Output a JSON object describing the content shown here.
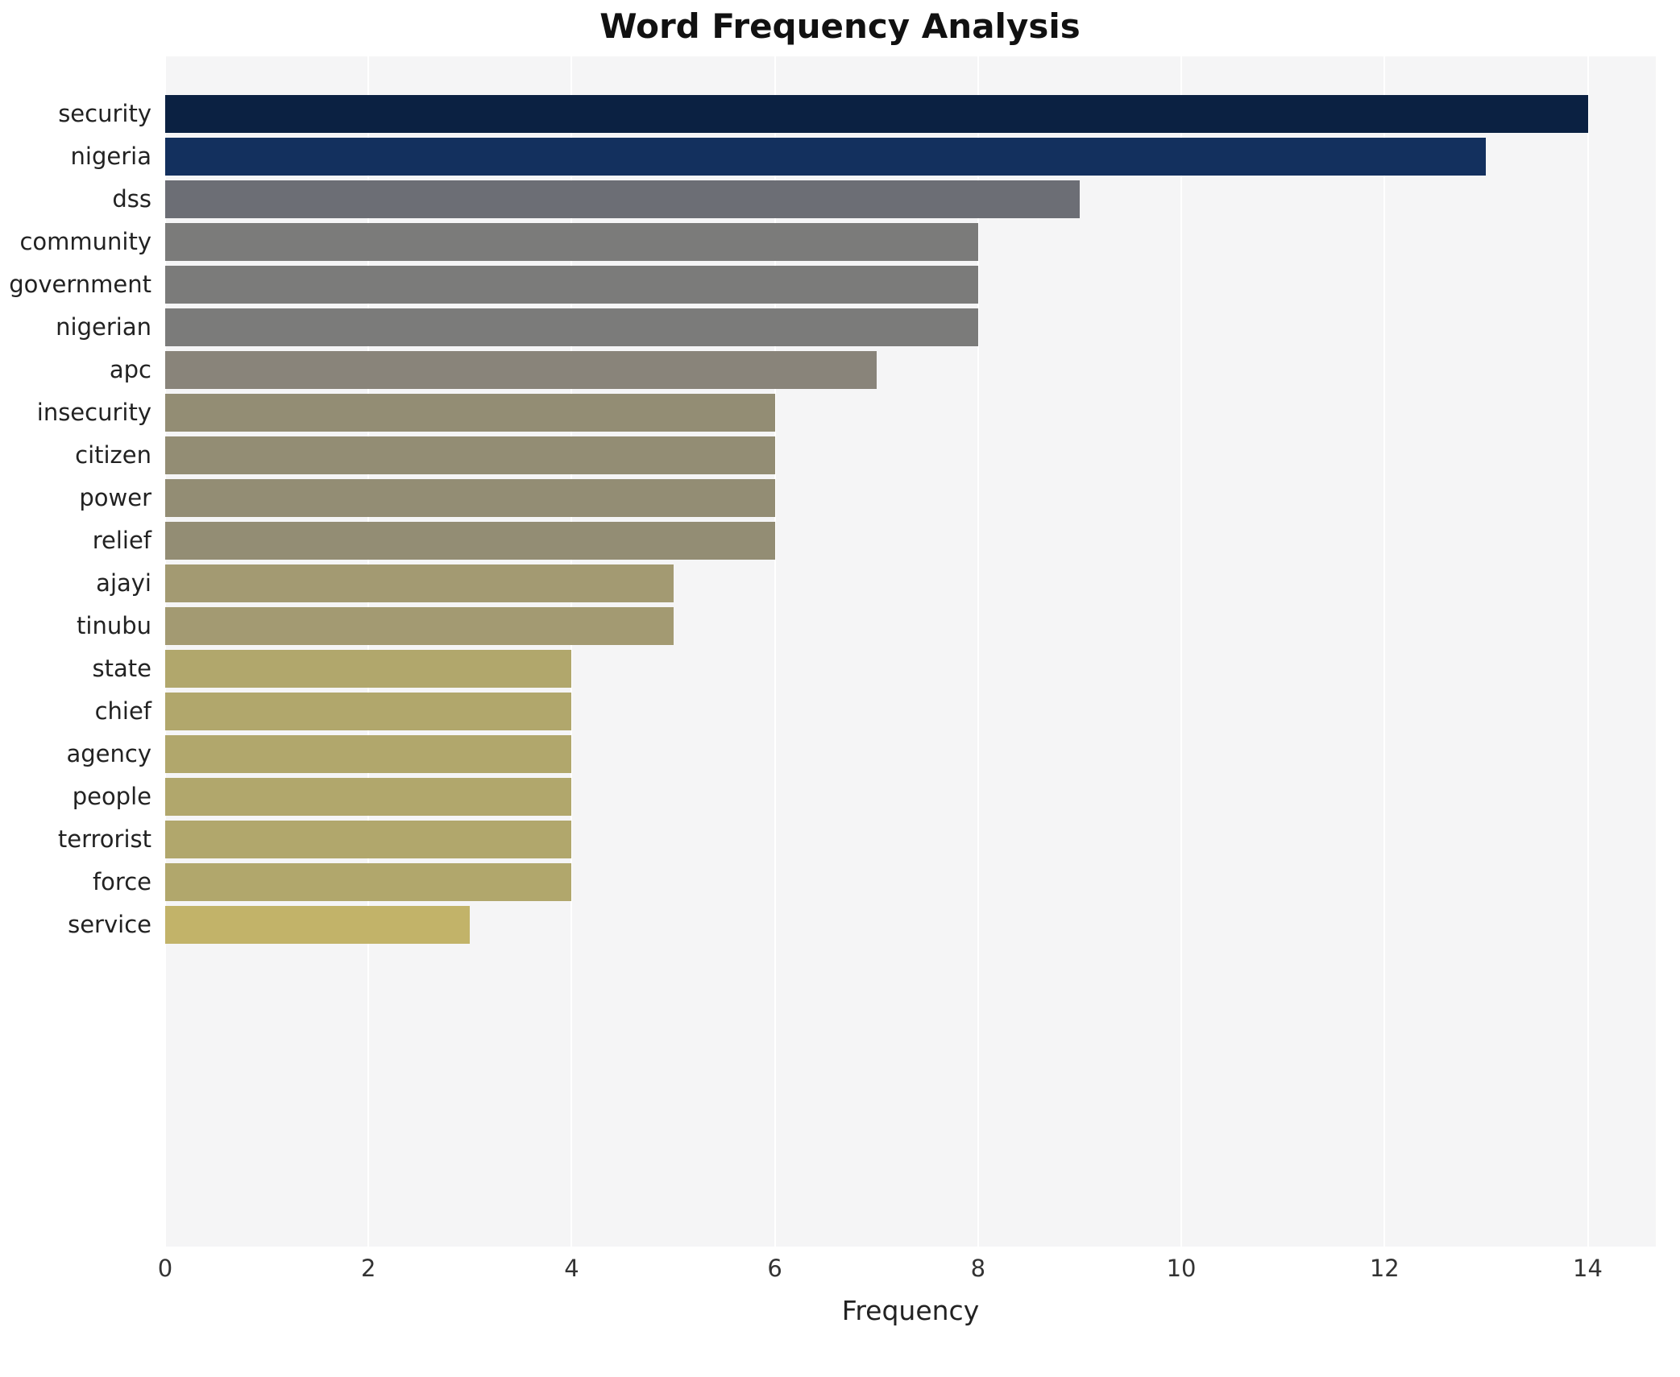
{
  "chart_data": {
    "type": "bar",
    "orientation": "horizontal",
    "title": "Word Frequency Analysis",
    "xlabel": "Frequency",
    "ylabel": "",
    "categories": [
      "security",
      "nigeria",
      "dss",
      "community",
      "government",
      "nigerian",
      "apc",
      "insecurity",
      "citizen",
      "power",
      "relief",
      "ajayi",
      "tinubu",
      "state",
      "chief",
      "agency",
      "people",
      "terrorist",
      "force",
      "service"
    ],
    "values": [
      14,
      13,
      9,
      8,
      8,
      8,
      7,
      6,
      6,
      6,
      6,
      5,
      5,
      4,
      4,
      4,
      4,
      4,
      4,
      3
    ],
    "colors": [
      "#0b2142",
      "#13305e",
      "#6c6e75",
      "#7b7b7a",
      "#7b7b7a",
      "#7b7b7a",
      "#89847a",
      "#938d74",
      "#938d74",
      "#938d74",
      "#938d74",
      "#a39a72",
      "#a39a72",
      "#b1a76c",
      "#b1a76c",
      "#b1a76c",
      "#b1a76c",
      "#b1a76c",
      "#b1a76c",
      "#c2b369"
    ],
    "xlim": [
      0,
      14.67
    ],
    "xticks": [
      0,
      2,
      4,
      6,
      8,
      10,
      12,
      14
    ],
    "grid": true,
    "legend": false,
    "plot_background": "#f5f5f6",
    "outer_background": "#ffffff"
  }
}
